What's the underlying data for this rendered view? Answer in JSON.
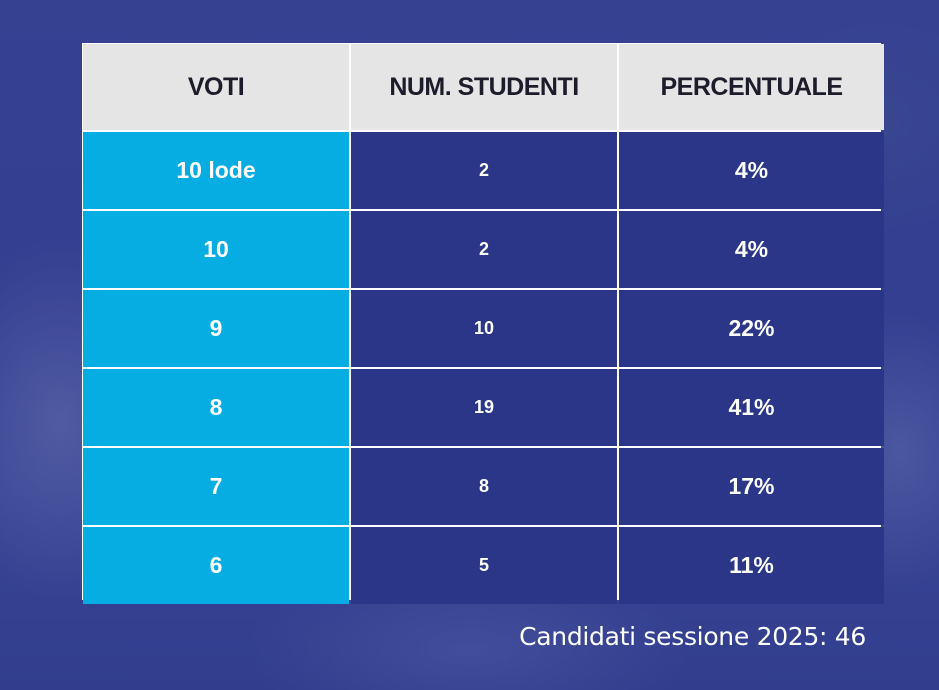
{
  "table": {
    "headers": [
      "VOTI",
      "NUM. STUDENTI",
      "PERCENTUALE"
    ],
    "rows": [
      {
        "voto": "10 lode",
        "studenti": "2",
        "percentuale": "4%"
      },
      {
        "voto": "10",
        "studenti": "2",
        "percentuale": "4%"
      },
      {
        "voto": "9",
        "studenti": "10",
        "percentuale": "22%"
      },
      {
        "voto": "8",
        "studenti": "19",
        "percentuale": "41%"
      },
      {
        "voto": "7",
        "studenti": "8",
        "percentuale": "17%"
      },
      {
        "voto": "6",
        "studenti": "5",
        "percentuale": "11%"
      }
    ]
  },
  "footer": "Candidati sessione 2025: 46",
  "colors": {
    "header_bg": "#e5e5e5",
    "voti_bg": "#06ade3",
    "cells_bg": "#2b3689",
    "page_bg": "#34418f"
  }
}
